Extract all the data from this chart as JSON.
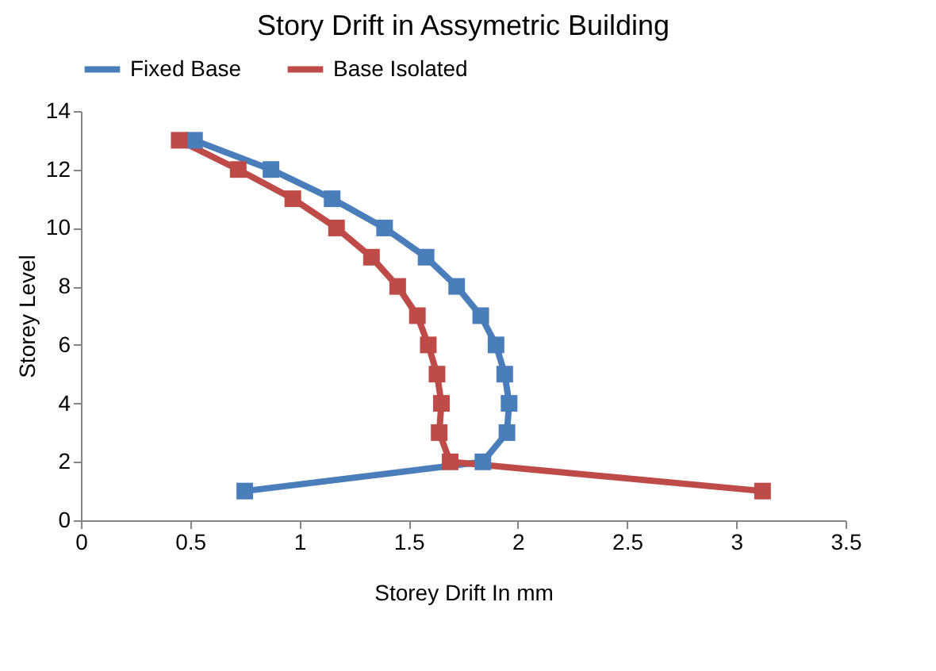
{
  "chart_data": {
    "type": "line",
    "title": "Story Drift in Assymetric Building",
    "xlabel": "Storey Drift In mm",
    "ylabel": "Storey Level",
    "series": [
      {
        "name": "Fixed Base",
        "color": "#4a7ebb",
        "x": [
          0.75,
          1.84,
          1.95,
          1.96,
          1.94,
          1.9,
          1.83,
          1.72,
          1.58,
          1.39,
          1.15,
          0.87,
          0.52
        ],
        "values": [
          1,
          2,
          3,
          4,
          5,
          6,
          7,
          8,
          9,
          10,
          11,
          12,
          13
        ]
      },
      {
        "name": "Base Isolated",
        "color": "#be4b48",
        "x": [
          3.12,
          1.69,
          1.64,
          1.65,
          1.63,
          1.59,
          1.54,
          1.45,
          1.33,
          1.17,
          0.97,
          0.72,
          0.45
        ],
        "values": [
          1,
          2,
          3,
          4,
          5,
          6,
          7,
          8,
          9,
          10,
          11,
          12,
          13
        ]
      }
    ],
    "xlim": [
      0,
      3.5
    ],
    "xticks": [
      0,
      0.5,
      1,
      1.5,
      2,
      2.5,
      3,
      3.5
    ],
    "ylim": [
      0,
      14
    ],
    "yticks": [
      0,
      2,
      4,
      6,
      8,
      10,
      12,
      14
    ],
    "grid": false,
    "legend": "top",
    "marker": "square",
    "line_style": "solid"
  }
}
